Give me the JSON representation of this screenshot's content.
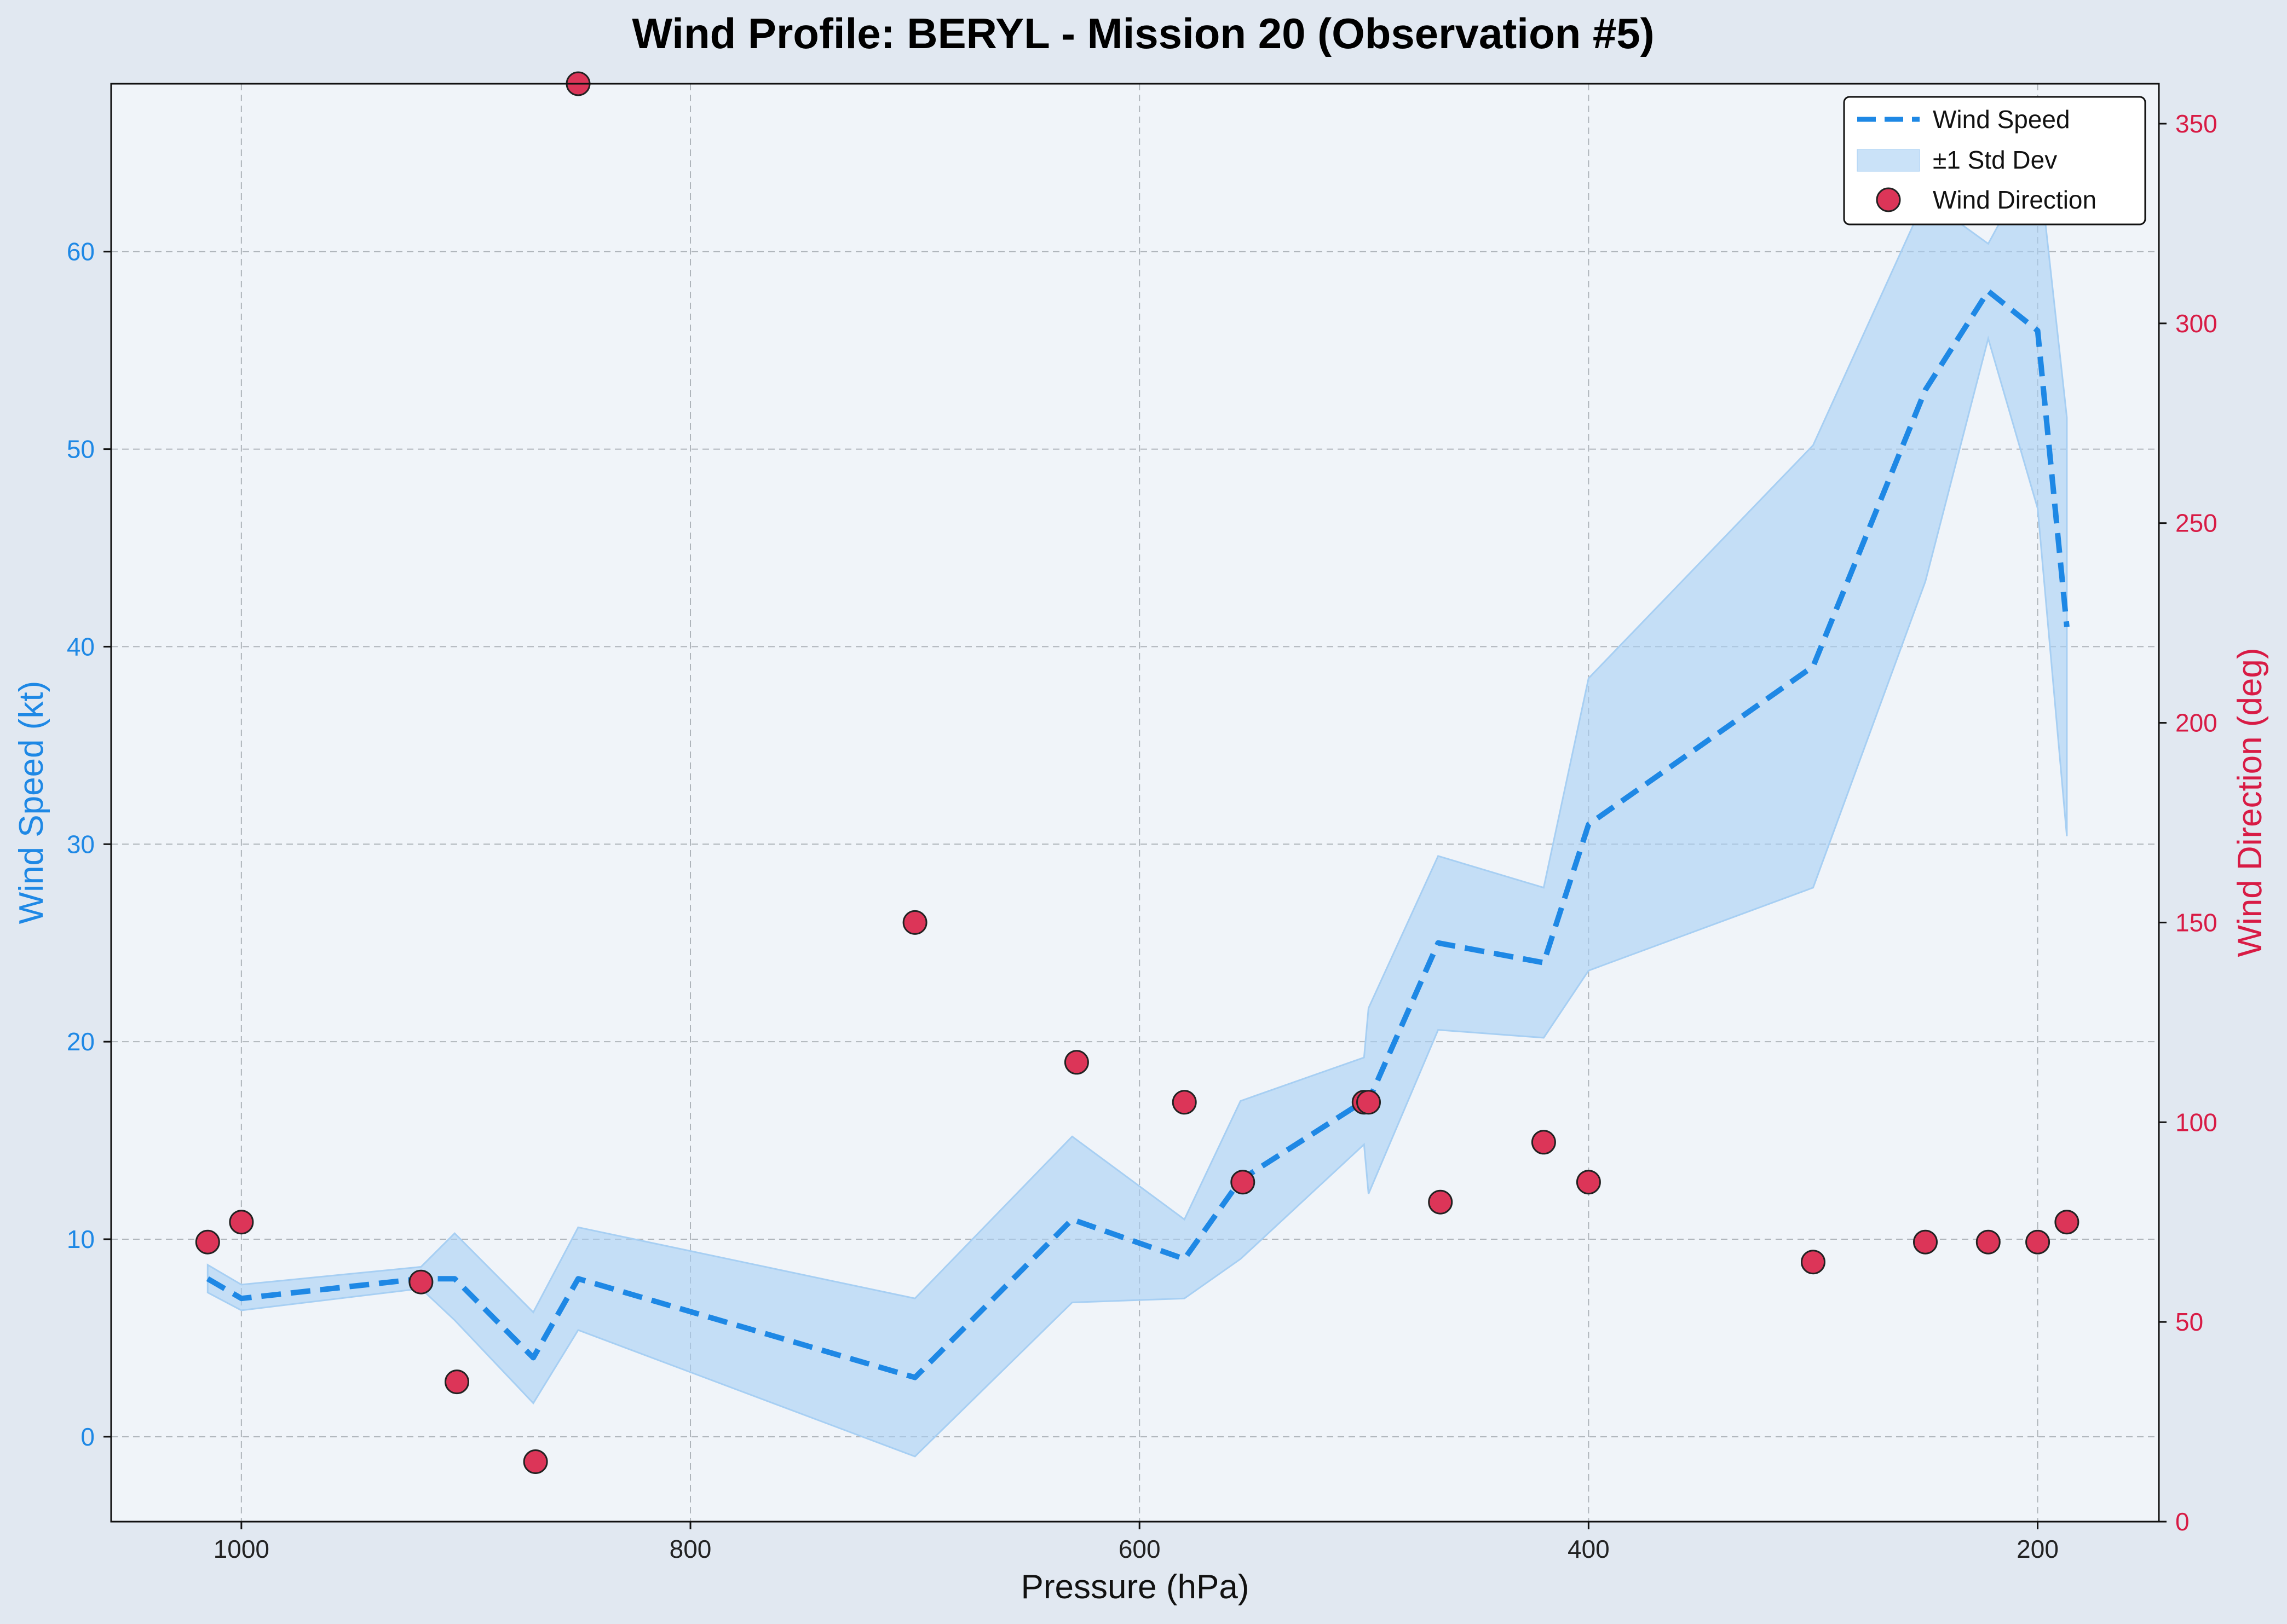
{
  "chart_data": {
    "type": "line",
    "title": "Wind Profile: BERYL - Mission 20 (Observation #5)",
    "xlabel": "Pressure (hPa)",
    "ylabel_left": "Wind Speed (kt)",
    "ylabel_right": "Wind Direction (deg)",
    "x_inverted": true,
    "xlim": [
      1058,
      146
    ],
    "ylim_left": [
      -4.3,
      68.5
    ],
    "ylim_right": [
      0,
      360
    ],
    "x_ticks": [
      1000,
      800,
      600,
      400,
      200
    ],
    "y_ticks_left": [
      0,
      10,
      20,
      30,
      40,
      50,
      60
    ],
    "y_ticks_right": [
      0,
      50,
      100,
      150,
      200,
      250,
      300,
      350
    ],
    "grid": true,
    "legend_position": "top-right",
    "colors": {
      "speed": "#1e88e5",
      "band": "#a7cff3",
      "direction": "#dc3558",
      "left_axis": "#1e88e5",
      "right_axis": "#d81b45",
      "plot_bg": "#f0f4f9",
      "figure_bg": "#e1e8f1"
    },
    "series": [
      {
        "name": "Wind Speed",
        "style": "dashed-line",
        "x": [
          1015,
          1000,
          920,
          905,
          870,
          850,
          700,
          630,
          580,
          555,
          500,
          498,
          467,
          420,
          400,
          300,
          250,
          222,
          200,
          187
        ],
        "y": [
          8,
          7,
          8,
          8,
          4,
          8,
          3,
          11,
          9,
          13,
          17,
          17,
          25,
          24,
          31,
          39,
          53,
          58,
          56,
          41
        ]
      },
      {
        "name": "±1 Std Dev",
        "style": "band",
        "x": [
          1015,
          1000,
          920,
          905,
          870,
          850,
          700,
          630,
          580,
          555,
          500,
          498,
          467,
          420,
          400,
          300,
          250,
          222,
          200,
          187
        ],
        "lower": [
          7.3,
          6.4,
          7.5,
          5.9,
          1.7,
          5.4,
          -1.0,
          6.8,
          7.0,
          9.0,
          14.8,
          12.3,
          20.6,
          20.2,
          23.6,
          27.8,
          43.3,
          55.6,
          47.0,
          30.4
        ],
        "upper": [
          8.7,
          7.7,
          8.6,
          10.3,
          6.3,
          10.6,
          7.0,
          15.2,
          11.0,
          17.0,
          19.2,
          21.7,
          29.4,
          27.8,
          38.4,
          50.2,
          62.7,
          60.4,
          65.0,
          51.6
        ]
      },
      {
        "name": "Wind Direction",
        "style": "scatter",
        "axis": "right",
        "x": [
          1015,
          1000,
          920,
          904,
          869,
          850,
          700,
          628,
          580,
          554,
          500,
          498,
          466,
          420,
          400,
          300,
          250,
          222,
          200,
          187
        ],
        "y": [
          70,
          75,
          60,
          35,
          15,
          360,
          150,
          115,
          105,
          85,
          105,
          105,
          80,
          95,
          85,
          65,
          70,
          70,
          70,
          75
        ]
      }
    ]
  }
}
